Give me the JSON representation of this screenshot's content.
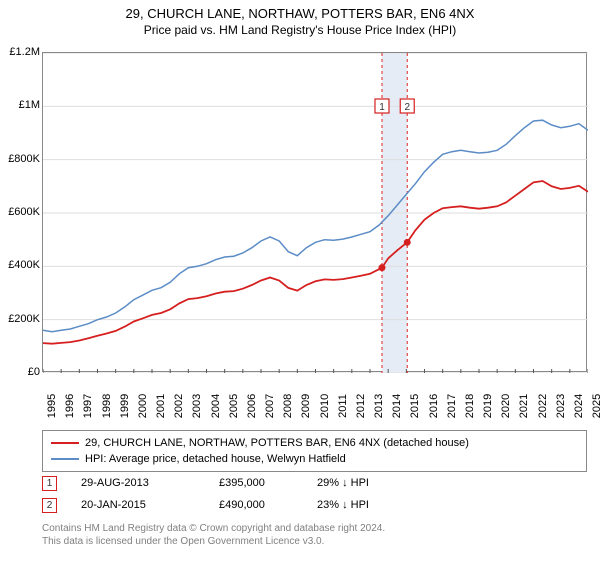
{
  "title": "29, CHURCH LANE, NORTHAW, POTTERS BAR, EN6 4NX",
  "subtitle": "Price paid vs. HM Land Registry's House Price Index (HPI)",
  "chart": {
    "type": "line",
    "background_color": "#ffffff",
    "border_color": "#888888",
    "grid_color": "#dedede",
    "xlim": [
      1995,
      2025
    ],
    "ylim": [
      0,
      1200000
    ],
    "yticks": [
      {
        "v": 0,
        "label": "£0"
      },
      {
        "v": 200000,
        "label": "£200K"
      },
      {
        "v": 400000,
        "label": "£400K"
      },
      {
        "v": 600000,
        "label": "£600K"
      },
      {
        "v": 800000,
        "label": "£800K"
      },
      {
        "v": 1000000,
        "label": "£1M"
      },
      {
        "v": 1200000,
        "label": "£1.2M"
      }
    ],
    "xticks": [
      1995,
      1996,
      1997,
      1998,
      1999,
      2000,
      2001,
      2002,
      2003,
      2004,
      2005,
      2006,
      2007,
      2008,
      2009,
      2010,
      2011,
      2012,
      2013,
      2014,
      2015,
      2016,
      2017,
      2018,
      2019,
      2020,
      2021,
      2022,
      2023,
      2024,
      2025
    ],
    "tick_fontsize": 11,
    "vertical_marker_color": "#e02020",
    "vertical_marker_dash": "3,3",
    "vertical_band_color": "#e6ecf5",
    "series": [
      {
        "id": "hpi",
        "label": "HPI: Average price, detached house, Welwyn Hatfield",
        "color": "#5b8cc6",
        "line_width": 1.5,
        "data": [
          [
            1995,
            160000
          ],
          [
            1995.5,
            155000
          ],
          [
            1996,
            160000
          ],
          [
            1996.5,
            165000
          ],
          [
            1997,
            175000
          ],
          [
            1997.5,
            185000
          ],
          [
            1998,
            200000
          ],
          [
            1998.5,
            210000
          ],
          [
            1999,
            225000
          ],
          [
            1999.5,
            248000
          ],
          [
            2000,
            275000
          ],
          [
            2000.5,
            292000
          ],
          [
            2001,
            310000
          ],
          [
            2001.5,
            320000
          ],
          [
            2002,
            340000
          ],
          [
            2002.5,
            372000
          ],
          [
            2003,
            395000
          ],
          [
            2003.5,
            400000
          ],
          [
            2004,
            410000
          ],
          [
            2004.5,
            425000
          ],
          [
            2005,
            435000
          ],
          [
            2005.5,
            438000
          ],
          [
            2006,
            450000
          ],
          [
            2006.5,
            470000
          ],
          [
            2007,
            495000
          ],
          [
            2007.5,
            510000
          ],
          [
            2008,
            495000
          ],
          [
            2008.5,
            455000
          ],
          [
            2009,
            440000
          ],
          [
            2009.5,
            470000
          ],
          [
            2010,
            490000
          ],
          [
            2010.5,
            500000
          ],
          [
            2011,
            498000
          ],
          [
            2011.5,
            502000
          ],
          [
            2012,
            510000
          ],
          [
            2012.5,
            520000
          ],
          [
            2013,
            530000
          ],
          [
            2013.5,
            555000
          ],
          [
            2014,
            590000
          ],
          [
            2014.5,
            630000
          ],
          [
            2015,
            670000
          ],
          [
            2015.5,
            710000
          ],
          [
            2016,
            755000
          ],
          [
            2016.5,
            790000
          ],
          [
            2017,
            820000
          ],
          [
            2017.5,
            830000
          ],
          [
            2018,
            835000
          ],
          [
            2018.5,
            830000
          ],
          [
            2019,
            825000
          ],
          [
            2019.5,
            828000
          ],
          [
            2020,
            835000
          ],
          [
            2020.5,
            858000
          ],
          [
            2021,
            890000
          ],
          [
            2021.5,
            920000
          ],
          [
            2022,
            945000
          ],
          [
            2022.5,
            948000
          ],
          [
            2023,
            930000
          ],
          [
            2023.5,
            920000
          ],
          [
            2024,
            925000
          ],
          [
            2024.5,
            935000
          ],
          [
            2025,
            910000
          ]
        ]
      },
      {
        "id": "property",
        "label": "29, CHURCH LANE, NORTHAW, POTTERS BAR, EN6 4NX (detached house)",
        "color": "#d61f1f",
        "line_width": 1.8,
        "data": [
          [
            1995,
            112000
          ],
          [
            1995.5,
            110000
          ],
          [
            1996,
            113000
          ],
          [
            1996.5,
            116000
          ],
          [
            1997,
            122000
          ],
          [
            1997.5,
            130000
          ],
          [
            1998,
            140000
          ],
          [
            1998.5,
            148000
          ],
          [
            1999,
            158000
          ],
          [
            1999.5,
            174000
          ],
          [
            2000,
            193000
          ],
          [
            2000.5,
            205000
          ],
          [
            2001,
            218000
          ],
          [
            2001.5,
            225000
          ],
          [
            2002,
            239000
          ],
          [
            2002.5,
            261000
          ],
          [
            2003,
            277000
          ],
          [
            2003.5,
            281000
          ],
          [
            2004,
            288000
          ],
          [
            2004.5,
            298000
          ],
          [
            2005,
            305000
          ],
          [
            2005.5,
            307000
          ],
          [
            2006,
            316000
          ],
          [
            2006.5,
            330000
          ],
          [
            2007,
            347000
          ],
          [
            2007.5,
            358000
          ],
          [
            2008,
            347000
          ],
          [
            2008.5,
            319000
          ],
          [
            2009,
            309000
          ],
          [
            2009.5,
            330000
          ],
          [
            2010,
            344000
          ],
          [
            2010.5,
            351000
          ],
          [
            2011,
            349000
          ],
          [
            2011.5,
            352000
          ],
          [
            2012,
            358000
          ],
          [
            2012.5,
            365000
          ],
          [
            2013,
            372000
          ],
          [
            2013.66,
            395000
          ],
          [
            2014,
            430000
          ],
          [
            2014.5,
            460000
          ],
          [
            2015.05,
            490000
          ],
          [
            2015.5,
            535000
          ],
          [
            2016,
            575000
          ],
          [
            2016.5,
            600000
          ],
          [
            2017,
            618000
          ],
          [
            2017.5,
            622000
          ],
          [
            2018,
            625000
          ],
          [
            2018.5,
            620000
          ],
          [
            2019,
            616000
          ],
          [
            2019.5,
            620000
          ],
          [
            2020,
            625000
          ],
          [
            2020.5,
            640000
          ],
          [
            2021,
            665000
          ],
          [
            2021.5,
            690000
          ],
          [
            2022,
            715000
          ],
          [
            2022.5,
            720000
          ],
          [
            2023,
            700000
          ],
          [
            2023.5,
            690000
          ],
          [
            2024,
            694000
          ],
          [
            2024.5,
            702000
          ],
          [
            2025,
            680000
          ]
        ]
      }
    ],
    "markers": [
      {
        "n": 1,
        "x": 2013.66,
        "y": 395000,
        "date": "29-AUG-2013",
        "price": "£395,000",
        "pct": "29% ↓ HPI",
        "border_color": "#d61f1f",
        "text_color": "#333333"
      },
      {
        "n": 2,
        "x": 2015.05,
        "y": 490000,
        "date": "20-JAN-2015",
        "price": "£490,000",
        "pct": "23% ↓ HPI",
        "border_color": "#d61f1f",
        "text_color": "#333333"
      }
    ]
  },
  "credits": {
    "line1": "Contains HM Land Registry data © Crown copyright and database right 2024.",
    "line2": "This data is licensed under the Open Government Licence v3.0.",
    "color": "#808080"
  }
}
